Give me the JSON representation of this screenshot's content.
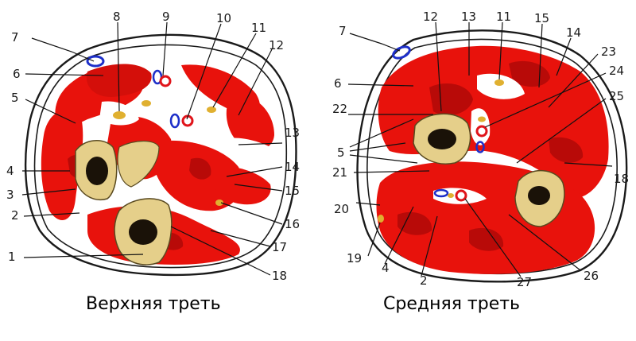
{
  "captions": {
    "upper": "Верхняя треть",
    "middle": "Средняя треть"
  },
  "colors": {
    "muscle": "#e8120c",
    "muscle_dark": "#b80a08",
    "bone": "#e5cf8a",
    "marrow": "#1a1208",
    "vein": "#1d2fc9",
    "artery": "#e0141a",
    "nerve": "#e0b030",
    "fascia": "#1a1a1a"
  },
  "labels_upper": [
    "8",
    "9",
    "10",
    "11",
    "7",
    "12",
    "6",
    "5",
    "13",
    "4",
    "14",
    "3",
    "15",
    "2",
    "16",
    "17",
    "1",
    "18"
  ],
  "labels_middle": [
    "12",
    "13",
    "11",
    "15",
    "7",
    "14",
    "23",
    "6",
    "24",
    "22",
    "25",
    "5",
    "18",
    "21",
    "20",
    "19",
    "4",
    "2",
    "27",
    "26"
  ]
}
